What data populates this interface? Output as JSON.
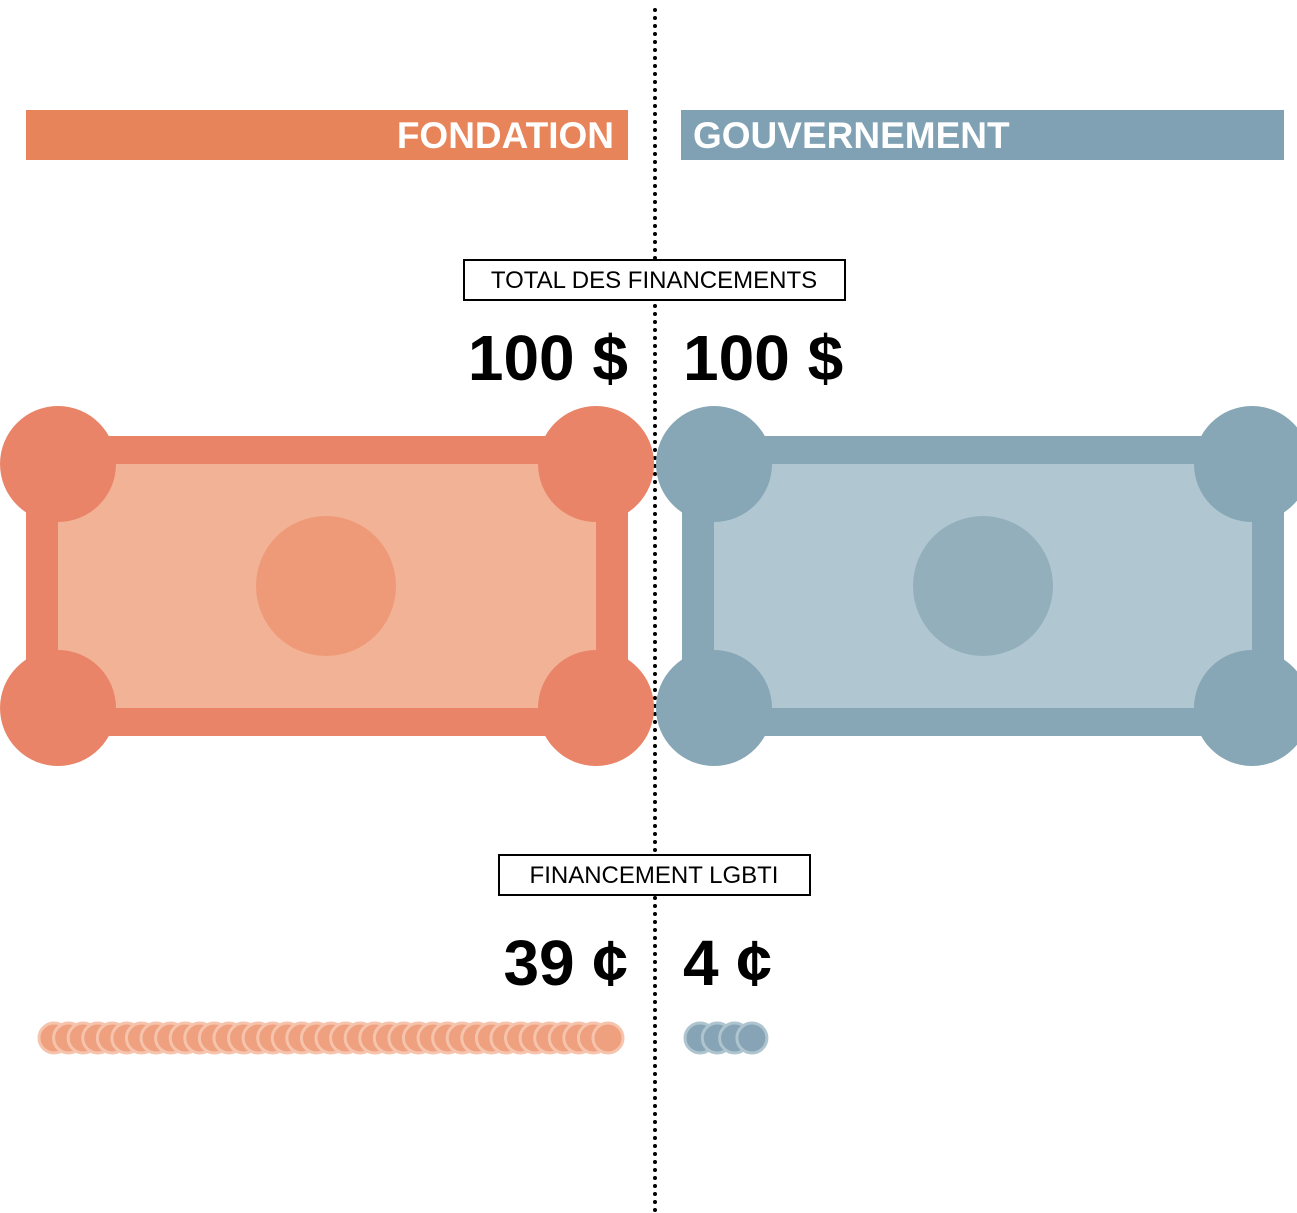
{
  "label_total": "TOTAL DES FINANCEMENTS",
  "label_lgbti": "FINANCEMENT LGBTI",
  "left": {
    "title": "FONDATION",
    "total": "100 $",
    "lgbti": {
      "value": 39,
      "label": "39 ¢"
    }
  },
  "right": {
    "title": "GOUVERNEMENT",
    "total": "100 $",
    "lgbti": {
      "value": 4,
      "label": "4 ¢"
    }
  }
}
